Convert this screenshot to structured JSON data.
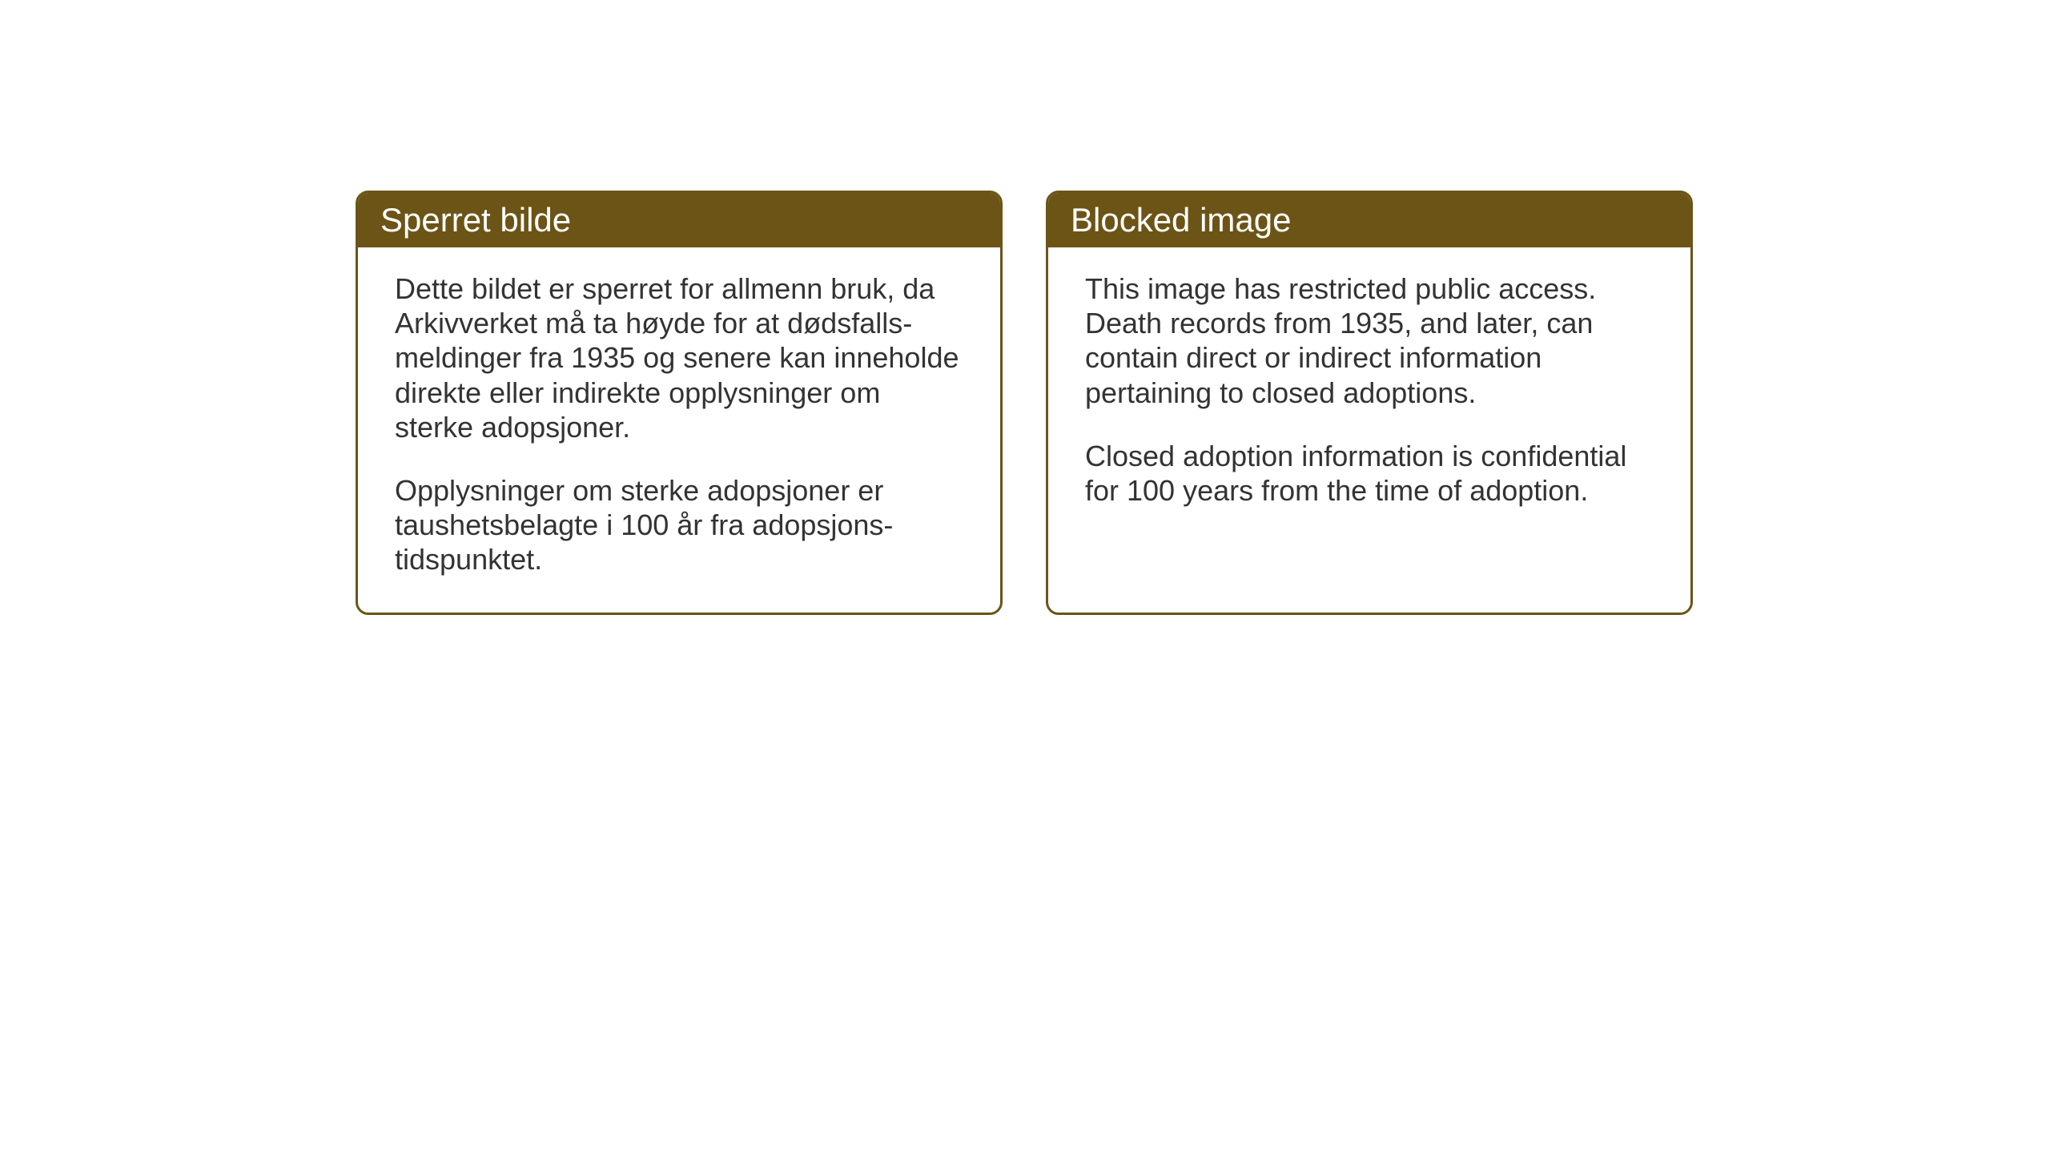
{
  "layout": {
    "background_color": "#ffffff",
    "card_border_color": "#6b5416",
    "card_header_bg": "#6b5416",
    "card_header_text_color": "#ffffff",
    "card_body_text_color": "#333333",
    "card_border_radius": 16,
    "card_border_width": 3,
    "title_fontsize": 42,
    "body_fontsize": 36
  },
  "cards": [
    {
      "title": "Sperret bilde",
      "paragraph1": "Dette bildet er sperret for allmenn bruk, da Arkivverket må ta høyde for at dødsfalls-meldinger fra 1935 og senere kan inneholde direkte eller indirekte opplysninger om sterke adopsjoner.",
      "paragraph2": "Opplysninger om sterke adopsjoner er taushetsbelagte i 100 år fra adopsjons-tidspunktet."
    },
    {
      "title": "Blocked image",
      "paragraph1": "This image has restricted public access. Death records from 1935, and later, can contain direct or indirect information pertaining to closed adoptions.",
      "paragraph2": "Closed adoption information is confidential for 100 years from the time of adoption."
    }
  ]
}
